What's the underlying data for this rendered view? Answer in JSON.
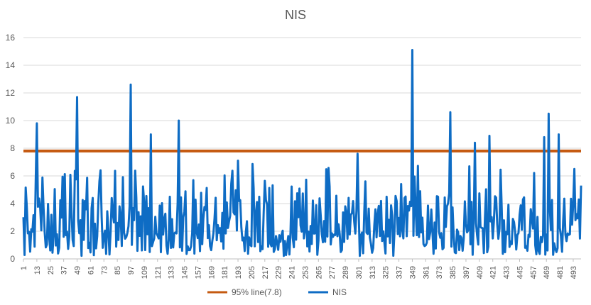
{
  "chart_data": {
    "type": "line",
    "title": "NIS",
    "ylim": [
      0,
      16
    ],
    "yticks": [
      "0",
      "2",
      "4",
      "6",
      "8",
      "10",
      "12",
      "14",
      "16"
    ],
    "x_count": 500,
    "xticks": [
      "1",
      "13",
      "25",
      "37",
      "49",
      "61",
      "73",
      "85",
      "97",
      "109",
      "121",
      "133",
      "145",
      "157",
      "169",
      "181",
      "193",
      "205",
      "217",
      "229",
      "241",
      "253",
      "265",
      "277",
      "289",
      "301",
      "313",
      "325",
      "337",
      "349",
      "361",
      "373",
      "385",
      "397",
      "409",
      "421",
      "433",
      "445",
      "457",
      "469",
      "481",
      "493"
    ],
    "grid": true,
    "legend_position": "bottom",
    "colors": {
      "threshold": "#c55a11",
      "nis": "#0e6cc4",
      "grid": "#d9d9d9"
    },
    "series": [
      {
        "name": "95% line(7.8)",
        "constant": 7.8
      },
      {
        "name": "NIS",
        "peaks": [
          [
            13,
            9.8
          ],
          [
            49,
            11.7
          ],
          [
            97,
            12.6
          ],
          [
            115,
            9.0
          ],
          [
            140,
            10.0
          ],
          [
            193,
            7.1
          ],
          [
            300,
            7.6
          ],
          [
            349,
            15.1
          ],
          [
            383,
            10.6
          ],
          [
            405,
            8.4
          ],
          [
            418,
            8.9
          ],
          [
            467,
            8.8
          ],
          [
            471,
            10.5
          ],
          [
            480,
            9.0
          ],
          [
            494,
            6.5
          ],
          [
            500,
            5.3
          ]
        ],
        "seed": 17
      }
    ]
  }
}
